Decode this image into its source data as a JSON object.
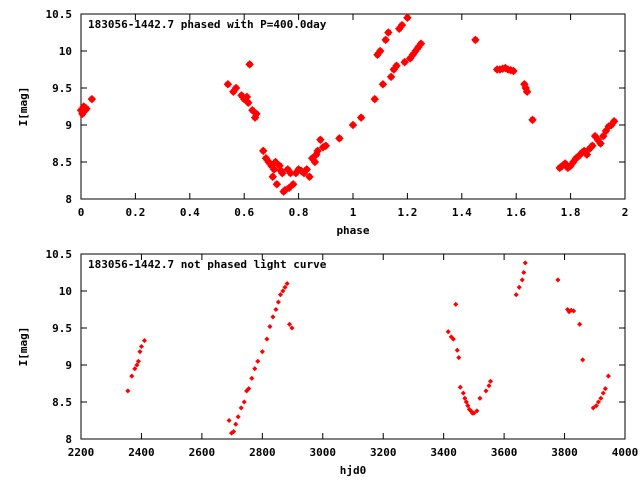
{
  "chart_data": [
    {
      "type": "scatter",
      "title": "183056-1442.7 phased with P=400.0day",
      "xlabel": "phase",
      "ylabel": "I[mag]",
      "xlim": [
        0,
        2
      ],
      "ylim": [
        10.5,
        8
      ],
      "y_inverted": true,
      "x_ticks": [
        "0",
        "0.2",
        "0.4",
        "0.6",
        "0.8",
        "1",
        "1.2",
        "1.4",
        "1.6",
        "1.8",
        "2"
      ],
      "y_ticks": [
        "8",
        "8.5",
        "9",
        "9.5",
        "10",
        "10.5"
      ],
      "grid": false,
      "color": "#ff0000",
      "series": [
        {
          "x": [
            0.0,
            0.005,
            0.01,
            0.015,
            0.02,
            0.04,
            0.54,
            0.56,
            0.57,
            0.59,
            0.6,
            0.61,
            0.615,
            0.62,
            0.63,
            0.64,
            0.645,
            0.67,
            0.68,
            0.69,
            0.7,
            0.705,
            0.71,
            0.715,
            0.72,
            0.73,
            0.735,
            0.74,
            0.745,
            0.75,
            0.76,
            0.765,
            0.77,
            0.78,
            0.79,
            0.8,
            0.81,
            0.82,
            0.83,
            0.84,
            0.85,
            0.86,
            0.865,
            0.87,
            0.88,
            0.89,
            0.9,
            0.95,
            1.0,
            1.03,
            1.08,
            1.09,
            1.1,
            1.11,
            1.12,
            1.13,
            1.14,
            1.15,
            1.16,
            1.17,
            1.18,
            1.19,
            1.2,
            1.21,
            1.22,
            1.23,
            1.24,
            1.25,
            1.45,
            1.53,
            1.54,
            1.55,
            1.56,
            1.57,
            1.58,
            1.59,
            1.63,
            1.635,
            1.64,
            1.66,
            1.76,
            1.77,
            1.78,
            1.79,
            1.8,
            1.81,
            1.82,
            1.83,
            1.84,
            1.85,
            1.86,
            1.87,
            1.88,
            1.89,
            1.9,
            1.91,
            1.92,
            1.93,
            1.94,
            1.95,
            1.96
          ],
          "y": [
            9.2,
            9.15,
            9.25,
            9.2,
            9.22,
            9.35,
            9.55,
            9.45,
            9.5,
            9.4,
            9.35,
            9.38,
            9.3,
            9.82,
            9.2,
            9.1,
            9.15,
            8.65,
            8.55,
            8.5,
            8.45,
            8.3,
            8.4,
            8.5,
            8.2,
            8.45,
            8.38,
            8.35,
            8.1,
            8.12,
            8.4,
            8.15,
            8.35,
            8.2,
            8.35,
            8.4,
            8.38,
            8.35,
            8.4,
            8.3,
            8.55,
            8.5,
            8.6,
            8.65,
            8.8,
            8.7,
            8.72,
            8.82,
            9.0,
            9.1,
            9.35,
            9.95,
            10.0,
            9.55,
            10.15,
            10.25,
            9.65,
            9.75,
            9.8,
            10.3,
            10.35,
            9.85,
            10.45,
            9.9,
            9.95,
            10.0,
            10.05,
            10.1,
            10.15,
            9.75,
            9.75,
            9.76,
            9.77,
            9.75,
            9.74,
            9.73,
            9.55,
            9.5,
            9.45,
            9.07,
            8.42,
            8.45,
            8.48,
            8.42,
            8.45,
            8.5,
            8.55,
            8.58,
            8.62,
            8.65,
            8.6,
            8.68,
            8.72,
            8.85,
            8.8,
            8.75,
            8.85,
            8.92,
            8.98,
            9.0,
            9.05
          ]
        }
      ]
    },
    {
      "type": "scatter",
      "title": "183056-1442.7 not phased light curve",
      "xlabel": "hjd0",
      "ylabel": "I[mag]",
      "xlim": [
        2200,
        4000
      ],
      "ylim": [
        10.5,
        8
      ],
      "y_inverted": true,
      "x_ticks": [
        "2200",
        "2400",
        "2600",
        "2800",
        "3000",
        "3200",
        "3400",
        "3600",
        "3800",
        "4000"
      ],
      "y_ticks": [
        "8",
        "8.5",
        "9",
        "9.5",
        "10",
        "10.5"
      ],
      "grid": false,
      "color": "#ff0000",
      "series": [
        {
          "x": [
            2355,
            2368,
            2378,
            2385,
            2390,
            2395,
            2400,
            2410,
            2690,
            2698,
            2705,
            2712,
            2720,
            2730,
            2740,
            2748,
            2755,
            2765,
            2775,
            2785,
            2800,
            2815,
            2825,
            2835,
            2845,
            2853,
            2860,
            2868,
            2875,
            2882,
            2890,
            2898,
            3415,
            3425,
            3432,
            3440,
            3445,
            3450,
            3455,
            3465,
            3470,
            3475,
            3480,
            3485,
            3490,
            3495,
            3500,
            3510,
            3520,
            3540,
            3550,
            3555,
            3640,
            3650,
            3660,
            3665,
            3670,
            3778,
            3810,
            3815,
            3822,
            3830,
            3850,
            3860,
            3895,
            3905,
            3912,
            3920,
            3928,
            3935,
            3945
          ],
          "y": [
            8.65,
            8.85,
            8.95,
            9.0,
            9.05,
            9.18,
            9.25,
            9.33,
            8.25,
            8.08,
            8.1,
            8.2,
            8.3,
            8.42,
            8.5,
            8.65,
            8.68,
            8.82,
            8.95,
            9.05,
            9.18,
            9.35,
            9.52,
            9.65,
            9.75,
            9.85,
            9.95,
            10.0,
            10.05,
            10.1,
            9.55,
            9.5,
            9.45,
            9.38,
            9.35,
            9.82,
            9.2,
            9.1,
            8.7,
            8.62,
            8.55,
            8.5,
            8.45,
            8.4,
            8.38,
            8.35,
            8.35,
            8.38,
            8.55,
            8.65,
            8.72,
            8.78,
            9.95,
            10.05,
            10.15,
            10.25,
            10.38,
            10.15,
            9.75,
            9.72,
            9.74,
            9.73,
            9.55,
            9.07,
            8.42,
            8.45,
            8.5,
            8.55,
            8.62,
            8.68,
            8.85
          ]
        }
      ]
    }
  ]
}
